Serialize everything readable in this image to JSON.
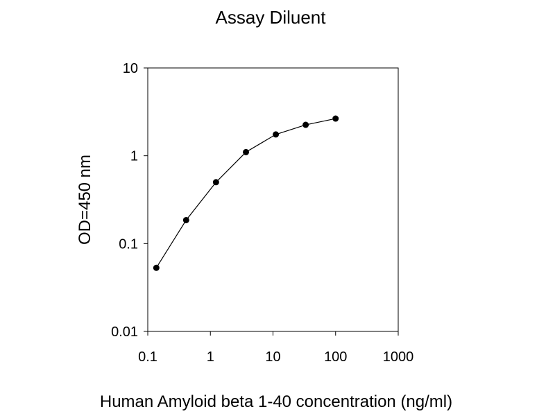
{
  "chart_data": {
    "type": "line",
    "title": "Assay Diluent",
    "xlabel": "Human Amyloid beta 1-40 concentration (ng/ml)",
    "ylabel": "OD=450 nm",
    "x_scale": "log",
    "y_scale": "log",
    "xlim": [
      0.1,
      1000
    ],
    "ylim": [
      0.01,
      10
    ],
    "x_ticks": [
      0.1,
      1,
      10,
      100,
      1000
    ],
    "x_tick_labels": [
      "0.1",
      "1",
      "10",
      "100",
      "1000"
    ],
    "y_ticks": [
      0.01,
      0.1,
      1,
      10
    ],
    "y_tick_labels": [
      "0.01",
      "0.1",
      "1",
      "10"
    ],
    "grid": false,
    "legend": "none",
    "color": "#000000",
    "series": [
      {
        "x": [
          0.137,
          0.41,
          1.23,
          3.7,
          11.1,
          33.3,
          100
        ],
        "y": [
          0.053,
          0.185,
          0.5,
          1.1,
          1.75,
          2.25,
          2.65
        ]
      }
    ]
  }
}
